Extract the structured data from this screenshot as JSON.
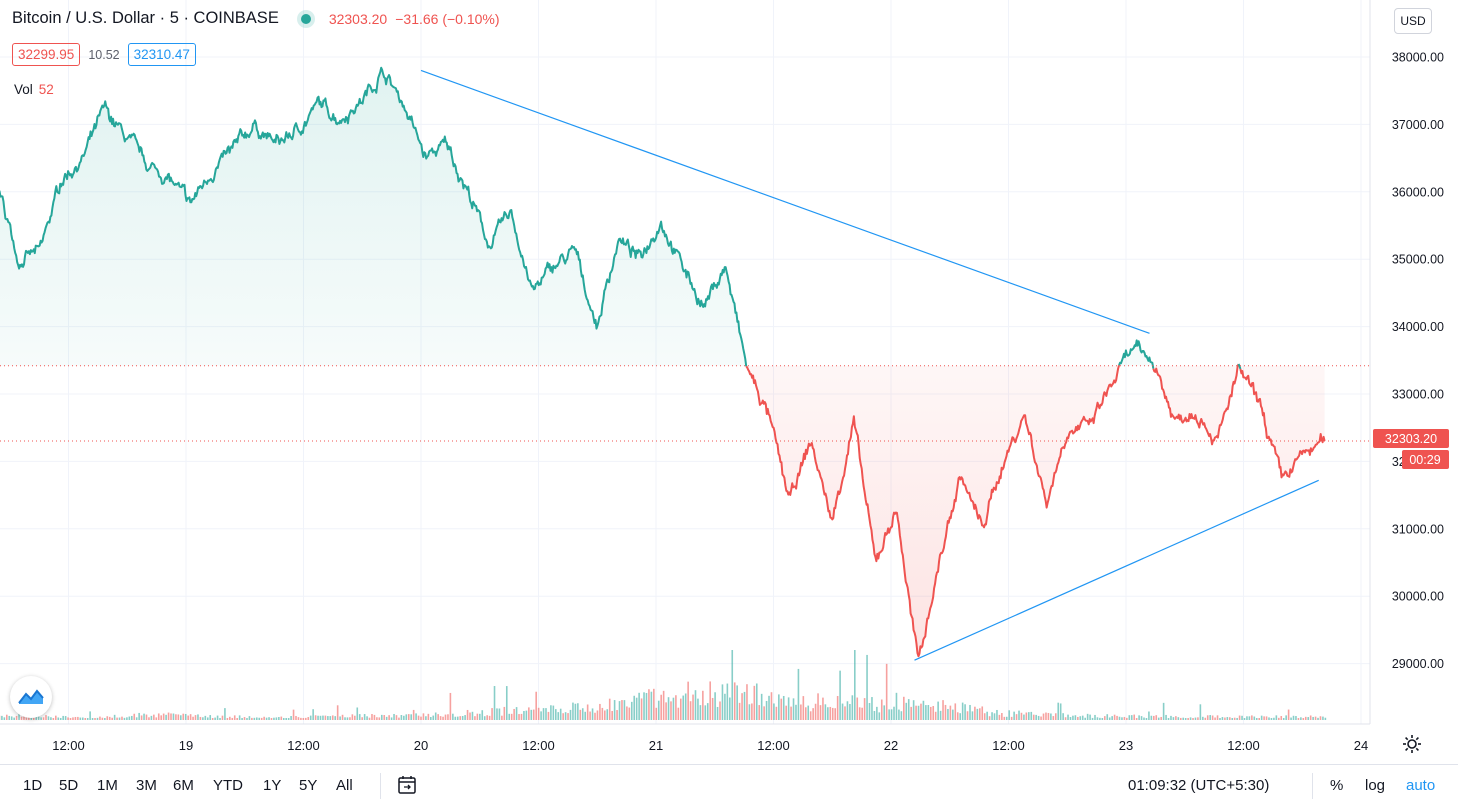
{
  "header": {
    "symbol_title": "Bitcoin / U.S. Dollar · 5 · COINBASE",
    "last_price": "32303.20",
    "change": "−31.66 (−0.10%)",
    "bid": "32299.95",
    "spread": "10.52",
    "ask": "32310.47",
    "vol_label": "Vol",
    "vol_value": "52",
    "currency": "USD"
  },
  "colors": {
    "up": "#26a69a",
    "down": "#ef5350",
    "trendline": "#2196f3",
    "grid": "#f0f3fa"
  },
  "price_label": {
    "price": "32303.20",
    "countdown": "00:29"
  },
  "toolbar": {
    "ranges": [
      "1D",
      "5D",
      "1M",
      "3M",
      "6M",
      "YTD",
      "1Y",
      "5Y",
      "All"
    ],
    "clock": "01:09:32 (UTC+5:30)",
    "percent": "%",
    "log": "log",
    "auto": "auto"
  },
  "chart_data": {
    "type": "area",
    "title": "Bitcoin / U.S. Dollar · 5 · COINBASE",
    "xlabel": "",
    "ylabel": "",
    "ylim": [
      28200,
      38500
    ],
    "x_ticks": [
      "12:00",
      "19",
      "12:00",
      "20",
      "12:00",
      "21",
      "12:00",
      "22",
      "12:00",
      "23",
      "12:00",
      "24"
    ],
    "y_ticks": [
      "38000.00",
      "37000.00",
      "36000.00",
      "35000.00",
      "34000.00",
      "33000.00",
      "32000.00",
      "31000.00",
      "30000.00",
      "29000.00"
    ],
    "baseline": 33420,
    "grid": true,
    "series": [
      {
        "values": [
          36200,
          35800,
          36100,
          35000,
          35100,
          36200,
          36500,
          37200,
          36800,
          36400,
          36200,
          35800,
          36300,
          36600,
          37000,
          36700,
          36900,
          37300,
          37100,
          37350,
          37800,
          37300,
          36500,
          36700,
          36000,
          35200,
          35700,
          34500,
          34900,
          35100,
          34000,
          35300,
          35000,
          35600,
          34900,
          34300,
          34900,
          33400,
          32700,
          31400,
          32300,
          31100,
          32600,
          30500,
          31300,
          29000,
          30500,
          31800,
          31000,
          32000,
          32700,
          31400,
          32500,
          32500,
          33100,
          33650,
          33500,
          32600,
          32800,
          32300,
          33350,
          32800,
          31700,
          32100,
          32300
        ]
      },
      {
        "values": [
          30,
          60,
          30,
          80,
          50,
          40,
          55,
          70,
          110,
          150,
          220,
          360,
          400,
          270,
          230,
          220,
          100,
          70,
          55,
          50,
          45,
          45
        ]
      }
    ],
    "annotations": [
      {
        "type": "trendline",
        "from": [
          20.0,
          37800
        ],
        "to": [
          23.1,
          33900
        ]
      },
      {
        "type": "trendline",
        "from": [
          22.1,
          29050
        ],
        "to": [
          23.82,
          31720
        ]
      }
    ]
  }
}
